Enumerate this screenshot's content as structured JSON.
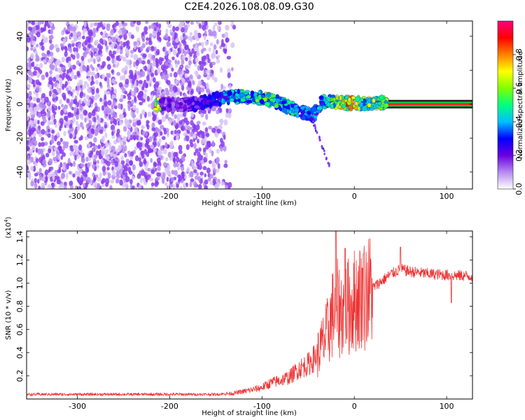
{
  "title": "C2E4.2026.108.08.09.G30",
  "colors": {
    "snr_line": "#ee3333",
    "spectrogram_background": "#d8c4f4",
    "noise_dots": "#8a3cf0",
    "track_core": "#ff2020",
    "track_halo": "#00cc44"
  },
  "chart_data": [
    {
      "type": "heatmap",
      "name": "spectrogram",
      "xlabel": "Height of straight line (km)",
      "ylabel": "Frequency (Hz)",
      "xlim": [
        -355,
        128
      ],
      "ylim": [
        -50,
        49
      ],
      "x_ticks": [
        -300,
        -200,
        -100,
        0,
        100
      ],
      "y_ticks": [
        -40,
        -20,
        0,
        20,
        40
      ],
      "colorbar": {
        "label": "Normalized spectral amplitude",
        "range": [
          0,
          1
        ],
        "ticks": [
          "0.0",
          "0.2",
          "0.4",
          "0.6",
          "0.8"
        ],
        "tick_values": [
          0.0,
          0.2,
          0.4,
          0.6,
          0.8
        ],
        "colormap": [
          "#ffffff",
          "#b58af0",
          "#6a00e0",
          "#0000ff",
          "#00c0ff",
          "#00ff80",
          "#80ff00",
          "#ffff00",
          "#ff8000",
          "#ff0000",
          "#ff0080"
        ]
      },
      "noise_region": {
        "x_from": -355,
        "x_to": -140,
        "frequency_range": [
          -50,
          49
        ]
      },
      "track": [
        {
          "x": -210,
          "f": 0.0,
          "amp": 0.2
        },
        {
          "x": -190,
          "f": -0.5,
          "amp": 0.2
        },
        {
          "x": -170,
          "f": 0.0,
          "amp": 0.25
        },
        {
          "x": -150,
          "f": 3.0,
          "amp": 0.3
        },
        {
          "x": -130,
          "f": 4.5,
          "amp": 0.45
        },
        {
          "x": -110,
          "f": 4.0,
          "amp": 0.5
        },
        {
          "x": -95,
          "f": 3.0,
          "amp": 0.55
        },
        {
          "x": -80,
          "f": 0.5,
          "amp": 0.5
        },
        {
          "x": -65,
          "f": -3.0,
          "amp": 0.45
        },
        {
          "x": -55,
          "f": -5.0,
          "amp": 0.4
        },
        {
          "x": -45,
          "f": -7.0,
          "amp": 0.35
        },
        {
          "x": -35,
          "f": 1.0,
          "amp": 0.4
        },
        {
          "x": -25,
          "f": 2.0,
          "amp": 0.55
        },
        {
          "x": -15,
          "f": 1.0,
          "amp": 0.75
        },
        {
          "x": -5,
          "f": 0.5,
          "amp": 0.8
        },
        {
          "x": 5,
          "f": 0.5,
          "amp": 0.6
        },
        {
          "x": 30,
          "f": 0.5,
          "amp": 0.6
        },
        {
          "x": 60,
          "f": 0.0,
          "amp": 0.7
        },
        {
          "x": 128,
          "f": 0.0,
          "amp": 0.7
        }
      ],
      "streak": [
        {
          "x": -45,
          "f": -10
        },
        {
          "x": -38,
          "f": -20
        },
        {
          "x": -30,
          "f": -32
        },
        {
          "x": -27,
          "f": -36
        }
      ]
    },
    {
      "type": "line",
      "name": "snr",
      "xlabel": "Height of straight line (km)",
      "ylabel": "SNR (10 * v/v)",
      "y_multiplier": "(x10",
      "y_multiplier_exp": "4",
      "y_multiplier_close": ")",
      "xlim": [
        -355,
        128
      ],
      "ylim": [
        0,
        14500
      ],
      "x_ticks": [
        -300,
        -200,
        -100,
        0,
        100
      ],
      "y_ticks": [
        2000,
        4000,
        6000,
        8000,
        10000,
        12000,
        14000
      ],
      "y_tick_labels": [
        "0.2",
        "0.4",
        "0.6",
        "0.8",
        "1.0",
        "1.2",
        "1.4"
      ],
      "series": [
        {
          "values_envelope": [
            {
              "x": -355,
              "y": 400
            },
            {
              "x": -200,
              "y": 400
            },
            {
              "x": -150,
              "y": 400
            },
            {
              "x": -130,
              "y": 500
            },
            {
              "x": -110,
              "y": 800
            },
            {
              "x": -100,
              "y": 1000
            },
            {
              "x": -90,
              "y": 1400
            },
            {
              "x": -80,
              "y": 1600
            },
            {
              "x": -70,
              "y": 1900
            },
            {
              "x": -60,
              "y": 2600
            },
            {
              "x": -50,
              "y": 3000
            },
            {
              "x": -40,
              "y": 3800
            },
            {
              "x": -30,
              "y": 5500
            },
            {
              "x": -25,
              "y": 7000
            },
            {
              "x": -20,
              "y": 8000
            },
            {
              "x": -15,
              "y": 7500
            },
            {
              "x": -10,
              "y": 7800
            },
            {
              "x": -5,
              "y": 8000
            },
            {
              "x": 0,
              "y": 8500
            },
            {
              "x": 10,
              "y": 9000
            },
            {
              "x": 20,
              "y": 9600
            },
            {
              "x": 30,
              "y": 10200
            },
            {
              "x": 40,
              "y": 10800
            },
            {
              "x": 50,
              "y": 11200
            },
            {
              "x": 60,
              "y": 11000
            },
            {
              "x": 80,
              "y": 10800
            },
            {
              "x": 100,
              "y": 10700
            },
            {
              "x": 128,
              "y": 10600
            }
          ],
          "peaks": [
            {
              "x": -20,
              "y": 14500
            },
            {
              "x": -10,
              "y": 13000
            },
            {
              "x": 10,
              "y": 12500
            },
            {
              "x": 50,
              "y": 13100
            },
            {
              "x": 105,
              "y": 8300
            }
          ]
        }
      ]
    }
  ]
}
